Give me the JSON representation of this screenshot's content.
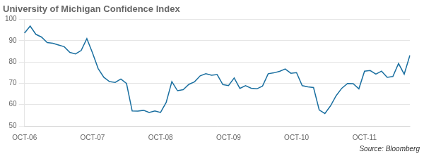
{
  "chart_data": {
    "type": "line",
    "title": "University of Michigan Confidence Index",
    "annotation": "Source: Bloomberg",
    "color": "#1a6fa0",
    "grid": true,
    "ylim": [
      50,
      100
    ],
    "yticks": [
      50,
      60,
      70,
      80,
      90,
      100
    ],
    "categories": [
      "OCT-06",
      null,
      null,
      null,
      null,
      null,
      null,
      null,
      null,
      null,
      null,
      null,
      "OCT-07",
      null,
      null,
      null,
      null,
      null,
      null,
      null,
      null,
      null,
      null,
      null,
      "OCT-08",
      null,
      null,
      null,
      null,
      null,
      null,
      null,
      null,
      null,
      null,
      null,
      "OCT-09",
      null,
      null,
      null,
      null,
      null,
      null,
      null,
      null,
      null,
      null,
      null,
      "OCT-10",
      null,
      null,
      null,
      null,
      null,
      null,
      null,
      null,
      null,
      null,
      null,
      "OCT-11",
      null,
      null,
      null,
      null,
      null,
      null,
      null,
      null
    ],
    "values": [
      93.6,
      96.9,
      93.0,
      91.7,
      89.1,
      88.8,
      88.0,
      87.2,
      84.5,
      83.8,
      85.4,
      91.0,
      84.3,
      76.9,
      72.8,
      70.8,
      70.4,
      72.0,
      69.9,
      57.0,
      56.9,
      57.3,
      56.3,
      57.0,
      56.3,
      61.0,
      70.8,
      66.5,
      67.0,
      69.5,
      70.7,
      73.5,
      74.5,
      73.8,
      74.1,
      69.4,
      68.9,
      72.5,
      67.6,
      68.9,
      67.7,
      67.4,
      68.7,
      74.5,
      74.9,
      75.6,
      76.7,
      74.7,
      75.0,
      68.9,
      68.3,
      68.0,
      57.5,
      55.8,
      59.4,
      64.2,
      67.7,
      69.9,
      69.8,
      67.4,
      75.7,
      76.0,
      74.3,
      75.7,
      72.8,
      73.2,
      79.3,
      74.3,
      83.1
    ]
  }
}
